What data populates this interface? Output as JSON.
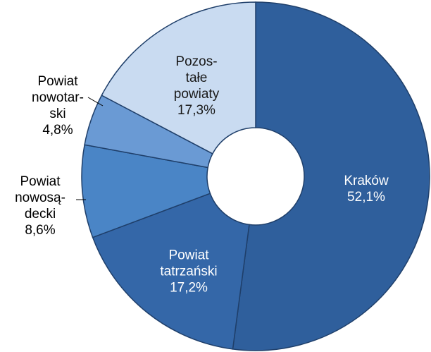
{
  "chart_data": {
    "type": "donut",
    "categories": [
      "Kraków",
      "Powiat\ntatrzański",
      "Powiat\nnowosą-\ndecki",
      "Powiat\nnowotar-\nski",
      "Pozos-\ntałe\npowiaty"
    ],
    "values": [
      52.1,
      17.2,
      8.6,
      4.8,
      17.3
    ],
    "value_labels": [
      "52,1%",
      "17,2%",
      "8,6%",
      "4,8%",
      "17,3%"
    ],
    "colors": [
      "#2f5f9c",
      "#3467a8",
      "#4a85c6",
      "#6a9ad4",
      "#c9dbf1"
    ]
  }
}
